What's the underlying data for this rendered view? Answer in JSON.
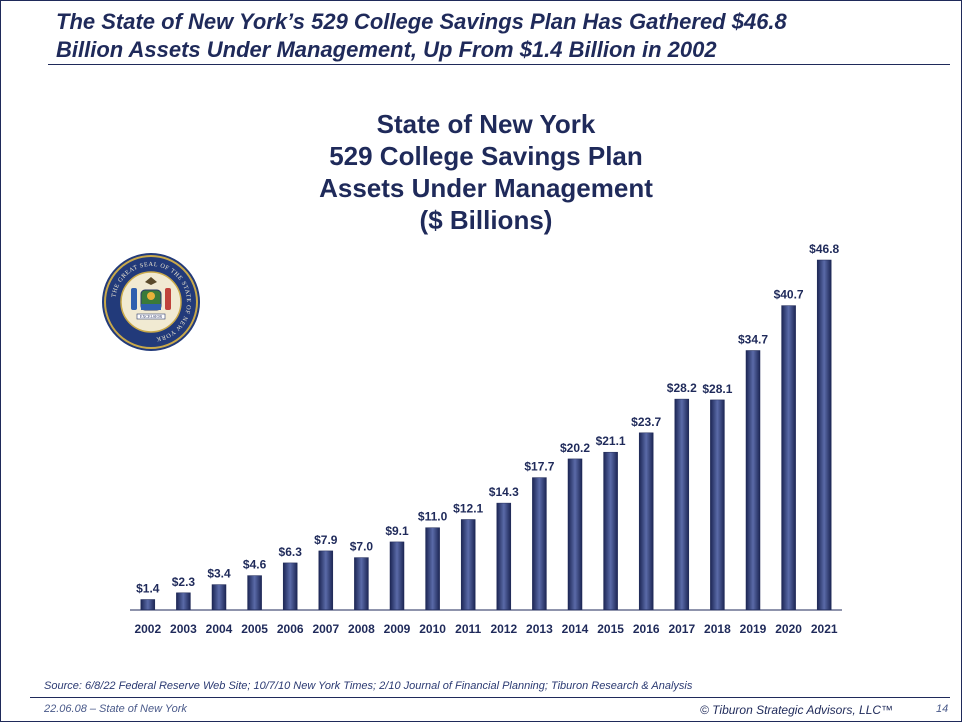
{
  "slide": {
    "headline_line1": "The State of New York’s 529 College Savings Plan Has Gathered $46.8",
    "headline_line2": "Billion Assets Under Management, Up From $1.4 Billion in 2002",
    "source": "Source:  6/8/22 Federal Reserve Web Site; 10/7/10 New York Times; 2/10 Journal of Financial Planning; Tiburon Research & Analysis",
    "footer_left": "22.06.08 – State of New York",
    "footer_right": "© Tiburon Strategic Advisors, LLC™",
    "page_number": "14"
  },
  "colors": {
    "navy": "#1f2a5a",
    "bar_dark": "#1c2654",
    "bar_light": "#5a6aa8"
  },
  "seal": {
    "icon": "state-of-new-york-seal-icon",
    "inscription": "THE GREAT SEAL OF THE STATE OF NEW YORK",
    "motto": "EXCELSIOR"
  },
  "chart_data": {
    "type": "bar",
    "title_lines": [
      "State of New York",
      "529 College Savings Plan",
      "Assets Under Management",
      "($ Billions)"
    ],
    "categories": [
      "2002",
      "2003",
      "2004",
      "2005",
      "2006",
      "2007",
      "2008",
      "2009",
      "2010",
      "2011",
      "2012",
      "2013",
      "2014",
      "2015",
      "2016",
      "2017",
      "2018",
      "2019",
      "2020",
      "2021"
    ],
    "values": [
      1.4,
      2.3,
      3.4,
      4.6,
      6.3,
      7.9,
      7.0,
      9.1,
      11.0,
      12.1,
      14.3,
      17.7,
      20.2,
      21.1,
      23.7,
      28.2,
      28.1,
      34.7,
      40.7,
      46.8
    ],
    "data_labels": [
      "$1.4",
      "$2.3",
      "$3.4",
      "$4.6",
      "$6.3",
      "$7.9",
      "$7.0",
      "$9.1",
      "$11.0",
      "$12.1",
      "$14.3",
      "$17.7",
      "$20.2",
      "$21.1",
      "$23.7",
      "$28.2",
      "$28.1",
      "$34.7",
      "$40.7",
      "$46.8"
    ],
    "xlabel": "",
    "ylabel": "",
    "ylim": [
      0,
      46.8
    ],
    "grid": false,
    "legend": "none"
  }
}
